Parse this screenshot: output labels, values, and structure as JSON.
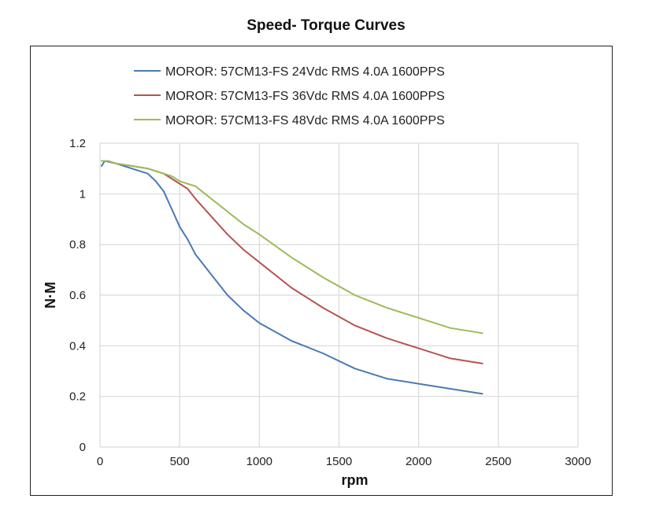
{
  "chart_data": {
    "type": "line",
    "title": "Speed- Torque Curves",
    "xlabel": "rpm",
    "ylabel": "N·M",
    "xlim": [
      0,
      3000
    ],
    "ylim": [
      0,
      1.2
    ],
    "xticks": [
      "0",
      "500",
      "1000",
      "1500",
      "2000",
      "2500",
      "3000"
    ],
    "yticks": [
      "0",
      "0.2",
      "0.4",
      "0.6",
      "0.8",
      "1",
      "1.2"
    ],
    "grid": true,
    "legend_position": "top",
    "series": [
      {
        "name": "MOROR: 57CM13-FS 24Vdc RMS 4.0A 1600PPS",
        "color": "#4a7ab5",
        "x": [
          10,
          30,
          100,
          200,
          300,
          350,
          400,
          450,
          500,
          550,
          600,
          700,
          800,
          900,
          1000,
          1200,
          1400,
          1600,
          1800,
          2000,
          2200,
          2400
        ],
        "y": [
          1.11,
          1.13,
          1.12,
          1.1,
          1.08,
          1.05,
          1.01,
          0.94,
          0.87,
          0.82,
          0.76,
          0.68,
          0.6,
          0.54,
          0.49,
          0.42,
          0.37,
          0.31,
          0.27,
          0.25,
          0.23,
          0.21
        ]
      },
      {
        "name": "MOROR: 57CM13-FS 36Vdc RMS 4.0A 1600PPS",
        "color": "#b65450",
        "x": [
          10,
          50,
          100,
          200,
          300,
          400,
          450,
          500,
          550,
          600,
          700,
          800,
          900,
          1000,
          1200,
          1400,
          1600,
          1800,
          2000,
          2200,
          2400
        ],
        "y": [
          1.13,
          1.13,
          1.12,
          1.11,
          1.1,
          1.08,
          1.06,
          1.04,
          1.02,
          0.98,
          0.91,
          0.84,
          0.78,
          0.73,
          0.63,
          0.55,
          0.48,
          0.43,
          0.39,
          0.35,
          0.33
        ]
      },
      {
        "name": "MOROR: 57CM13-FS 48Vdc RMS 4.0A 1600PPS",
        "color": "#9cba5a",
        "x": [
          10,
          50,
          100,
          200,
          300,
          400,
          450,
          500,
          550,
          600,
          700,
          800,
          900,
          1000,
          1200,
          1400,
          1600,
          1800,
          2000,
          2200,
          2400
        ],
        "y": [
          1.13,
          1.13,
          1.12,
          1.11,
          1.1,
          1.08,
          1.07,
          1.05,
          1.04,
          1.03,
          0.98,
          0.93,
          0.88,
          0.84,
          0.75,
          0.67,
          0.6,
          0.55,
          0.51,
          0.47,
          0.45
        ]
      }
    ]
  }
}
